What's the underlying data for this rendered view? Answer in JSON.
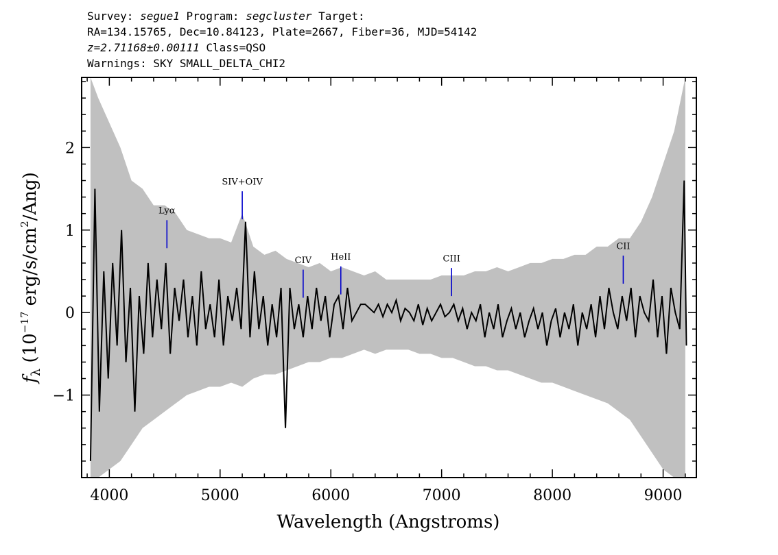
{
  "header": {
    "line1_a": "Survey: ",
    "survey": "segue1",
    "line1_b": " Program: ",
    "program": "segcluster",
    "line1_c": " Target:",
    "line2": "RA=134.15765, Dec=10.84123, Plate=2667, Fiber=36, MJD=54142",
    "redshift": "z=2.71168±0.00111",
    "class_text": " Class=QSO",
    "warnings": "Warnings: SKY SMALL_DELTA_CHI2"
  },
  "chart_data": {
    "type": "line",
    "xlabel": "Wavelength (Angstroms)",
    "ylabel_parts": {
      "f": "f",
      "lambda": "λ",
      "open": " (10",
      "exp": "−17",
      "mid": " erg/s/cm",
      "sq": "2",
      "close": "/Ang)"
    },
    "xlim": [
      3750,
      9300
    ],
    "ylim": [
      -2.0,
      2.85
    ],
    "xticks": [
      4000,
      5000,
      6000,
      7000,
      8000,
      9000
    ],
    "yticks": [
      -1,
      0,
      1,
      2
    ],
    "xtick_labels": [
      "4000",
      "5000",
      "6000",
      "7000",
      "8000",
      "9000"
    ],
    "ytick_labels": [
      "−1",
      "0",
      "1",
      "2"
    ],
    "colors": {
      "flux": "#000000",
      "error": "#c0c0c0",
      "line_marker": "#0000cc"
    },
    "series": [
      {
        "role": "flux",
        "x": [
          3830,
          3870,
          3910,
          3950,
          3990,
          4030,
          4070,
          4110,
          4150,
          4190,
          4230,
          4270,
          4310,
          4350,
          4390,
          4430,
          4470,
          4510,
          4550,
          4590,
          4630,
          4670,
          4710,
          4750,
          4790,
          4830,
          4870,
          4910,
          4950,
          4990,
          5030,
          5070,
          5110,
          5150,
          5190,
          5230,
          5270,
          5310,
          5350,
          5390,
          5430,
          5470,
          5510,
          5550,
          5590,
          5630,
          5670,
          5710,
          5750,
          5790,
          5830,
          5870,
          5910,
          5950,
          5990,
          6030,
          6070,
          6110,
          6150,
          6190,
          6230,
          6270,
          6310,
          6350,
          6390,
          6430,
          6470,
          6510,
          6550,
          6590,
          6630,
          6670,
          6710,
          6750,
          6790,
          6830,
          6870,
          6910,
          6950,
          6990,
          7030,
          7070,
          7110,
          7150,
          7190,
          7230,
          7270,
          7310,
          7350,
          7390,
          7430,
          7470,
          7510,
          7550,
          7590,
          7630,
          7670,
          7710,
          7750,
          7790,
          7830,
          7870,
          7910,
          7950,
          7990,
          8030,
          8070,
          8110,
          8150,
          8190,
          8230,
          8270,
          8310,
          8350,
          8390,
          8430,
          8470,
          8510,
          8550,
          8590,
          8630,
          8670,
          8710,
          8750,
          8790,
          8830,
          8870,
          8910,
          8950,
          8990,
          9030,
          9070,
          9110,
          9150,
          9190,
          9210
        ],
        "y": [
          -1.8,
          1.5,
          -1.2,
          0.5,
          -0.8,
          0.6,
          -0.4,
          1.0,
          -0.6,
          0.3,
          -1.2,
          0.2,
          -0.5,
          0.6,
          -0.3,
          0.4,
          -0.2,
          0.6,
          -0.5,
          0.3,
          -0.1,
          0.4,
          -0.3,
          0.2,
          -0.4,
          0.5,
          -0.2,
          0.1,
          -0.3,
          0.4,
          -0.4,
          0.2,
          -0.1,
          0.3,
          -0.2,
          1.1,
          -0.3,
          0.5,
          -0.2,
          0.2,
          -0.4,
          0.1,
          -0.3,
          0.3,
          -1.4,
          0.3,
          -0.2,
          0.1,
          -0.3,
          0.2,
          -0.2,
          0.3,
          -0.1,
          0.2,
          -0.3,
          0.1,
          0.2,
          -0.2,
          0.3,
          -0.1,
          0.0,
          0.1,
          0.1,
          0.05,
          0.0,
          0.1,
          -0.05,
          0.1,
          0.0,
          0.15,
          -0.1,
          0.05,
          0.0,
          -0.1,
          0.1,
          -0.15,
          0.05,
          -0.1,
          0.0,
          0.1,
          -0.05,
          0.0,
          0.1,
          -0.1,
          0.05,
          -0.2,
          0.0,
          -0.1,
          0.1,
          -0.3,
          0.0,
          -0.2,
          0.1,
          -0.3,
          -0.1,
          0.05,
          -0.2,
          0.0,
          -0.3,
          -0.1,
          0.05,
          -0.2,
          0.0,
          -0.4,
          -0.1,
          0.05,
          -0.3,
          0.0,
          -0.2,
          0.1,
          -0.4,
          0.0,
          -0.2,
          0.1,
          -0.3,
          0.2,
          -0.2,
          0.3,
          0.0,
          -0.2,
          0.2,
          -0.1,
          0.3,
          -0.3,
          0.2,
          0.0,
          -0.1,
          0.4,
          -0.3,
          0.2,
          -0.5,
          0.3,
          0.0,
          -0.2,
          1.6,
          -0.4
        ]
      },
      {
        "role": "error_band",
        "x": [
          3830,
          3900,
          4000,
          4100,
          4200,
          4300,
          4400,
          4500,
          4600,
          4700,
          4800,
          4900,
          5000,
          5100,
          5200,
          5300,
          5400,
          5500,
          5600,
          5700,
          5800,
          5900,
          6000,
          6100,
          6200,
          6300,
          6400,
          6500,
          6600,
          6700,
          6800,
          6900,
          7000,
          7100,
          7200,
          7300,
          7400,
          7500,
          7600,
          7700,
          7800,
          7900,
          8000,
          8100,
          8200,
          8300,
          8400,
          8500,
          8600,
          8700,
          8800,
          8900,
          9000,
          9100,
          9200
        ],
        "upper": [
          2.85,
          2.6,
          2.3,
          2.0,
          1.6,
          1.5,
          1.3,
          1.3,
          1.2,
          1.0,
          0.95,
          0.9,
          0.9,
          0.85,
          1.2,
          0.8,
          0.7,
          0.75,
          0.65,
          0.6,
          0.55,
          0.6,
          0.5,
          0.55,
          0.5,
          0.45,
          0.5,
          0.4,
          0.4,
          0.4,
          0.4,
          0.4,
          0.45,
          0.45,
          0.45,
          0.5,
          0.5,
          0.55,
          0.5,
          0.55,
          0.6,
          0.6,
          0.65,
          0.65,
          0.7,
          0.7,
          0.8,
          0.8,
          0.9,
          0.9,
          1.1,
          1.4,
          1.8,
          2.2,
          2.85
        ],
        "lower": [
          -2.0,
          -2.0,
          -1.9,
          -1.8,
          -1.6,
          -1.4,
          -1.3,
          -1.2,
          -1.1,
          -1.0,
          -0.95,
          -0.9,
          -0.9,
          -0.85,
          -0.9,
          -0.8,
          -0.75,
          -0.75,
          -0.7,
          -0.65,
          -0.6,
          -0.6,
          -0.55,
          -0.55,
          -0.5,
          -0.45,
          -0.5,
          -0.45,
          -0.45,
          -0.45,
          -0.5,
          -0.5,
          -0.55,
          -0.55,
          -0.6,
          -0.65,
          -0.65,
          -0.7,
          -0.7,
          -0.75,
          -0.8,
          -0.85,
          -0.85,
          -0.9,
          -0.95,
          -1.0,
          -1.05,
          -1.1,
          -1.2,
          -1.3,
          -1.5,
          -1.7,
          -1.9,
          -2.0,
          -2.0
        ]
      }
    ],
    "annotations": [
      {
        "label": "Lyα",
        "x": 4520,
        "y_top": 1.12,
        "y_bottom": 0.78,
        "label_y": 1.2
      },
      {
        "label": "SIV+OIV",
        "x": 5200,
        "y_top": 1.47,
        "y_bottom": 1.13,
        "label_y": 1.55
      },
      {
        "label": "CIV",
        "x": 5750,
        "y_top": 0.52,
        "y_bottom": 0.18,
        "label_y": 0.6
      },
      {
        "label": "HeII",
        "x": 6090,
        "y_top": 0.56,
        "y_bottom": 0.22,
        "label_y": 0.64
      },
      {
        "label": "CIII",
        "x": 7090,
        "y_top": 0.54,
        "y_bottom": 0.2,
        "label_y": 0.62
      },
      {
        "label": "CII",
        "x": 8640,
        "y_top": 0.69,
        "y_bottom": 0.35,
        "label_y": 0.77
      }
    ]
  }
}
